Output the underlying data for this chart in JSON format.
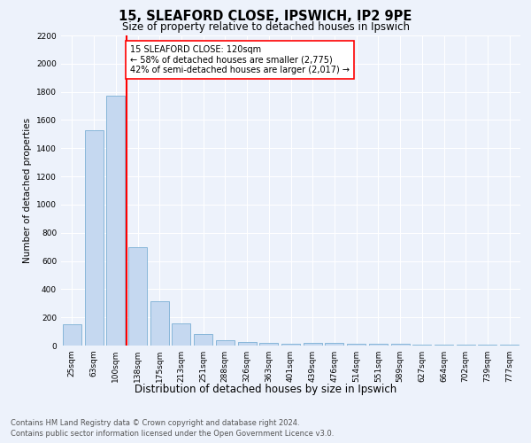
{
  "title1": "15, SLEAFORD CLOSE, IPSWICH, IP2 9PE",
  "title2": "Size of property relative to detached houses in Ipswich",
  "xlabel": "Distribution of detached houses by size in Ipswich",
  "ylabel": "Number of detached properties",
  "categories": [
    "25sqm",
    "63sqm",
    "100sqm",
    "138sqm",
    "175sqm",
    "213sqm",
    "251sqm",
    "288sqm",
    "326sqm",
    "363sqm",
    "401sqm",
    "439sqm",
    "476sqm",
    "514sqm",
    "551sqm",
    "589sqm",
    "627sqm",
    "664sqm",
    "702sqm",
    "739sqm",
    "777sqm"
  ],
  "values": [
    150,
    1525,
    1775,
    700,
    315,
    155,
    80,
    40,
    25,
    20,
    15,
    20,
    18,
    15,
    12,
    10,
    8,
    8,
    8,
    8,
    8
  ],
  "bar_color": "#c5d8f0",
  "bar_edge_color": "#7aafd4",
  "red_line_x": 2.5,
  "annotation_text": "15 SLEAFORD CLOSE: 120sqm\n← 58% of detached houses are smaller (2,775)\n42% of semi-detached houses are larger (2,017) →",
  "ylim": [
    0,
    2200
  ],
  "yticks": [
    0,
    200,
    400,
    600,
    800,
    1000,
    1200,
    1400,
    1600,
    1800,
    2000,
    2200
  ],
  "footer1": "Contains HM Land Registry data © Crown copyright and database right 2024.",
  "footer2": "Contains public sector information licensed under the Open Government Licence v3.0.",
  "bg_color": "#edf2fb",
  "plot_bg_color": "#edf2fb",
  "grid_color": "#ffffff",
  "title1_fontsize": 10.5,
  "title2_fontsize": 8.5,
  "xlabel_fontsize": 8.5,
  "ylabel_fontsize": 7.5,
  "tick_fontsize": 6.5,
  "annotation_fontsize": 7,
  "footer_fontsize": 6
}
